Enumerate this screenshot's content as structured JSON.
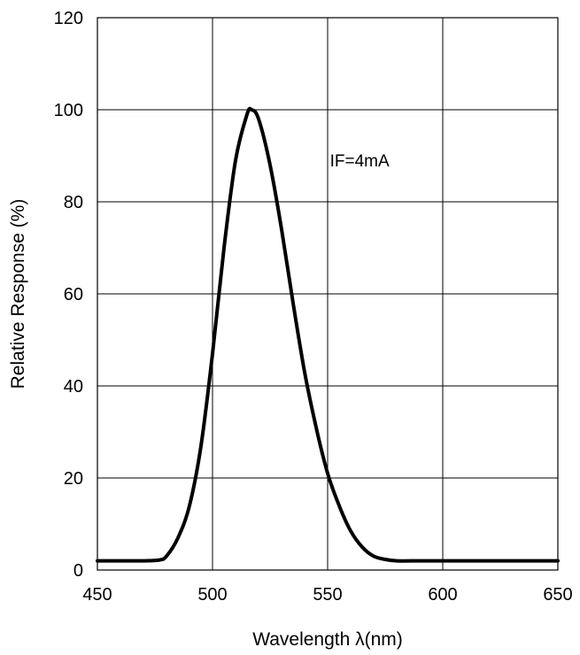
{
  "chart_data": {
    "type": "line",
    "title": "",
    "xlabel": "Wavelength λ(nm)",
    "ylabel": "Relative Response (%)",
    "xlim": [
      450,
      650
    ],
    "ylim": [
      0,
      120
    ],
    "xticks": [
      450,
      500,
      550,
      600,
      650
    ],
    "yticks": [
      0,
      20,
      40,
      60,
      80,
      100,
      120
    ],
    "grid": true,
    "annotations": [
      {
        "text": "IF=4mA",
        "x": 551,
        "y": 89
      }
    ],
    "series": [
      {
        "color": "#000000",
        "x": [
          450,
          470,
          477,
          480,
          485,
          490,
          495,
          500,
          505,
          510,
          515,
          517,
          520,
          525,
          530,
          535,
          540,
          545,
          550,
          555,
          560,
          565,
          570,
          575,
          580,
          590,
          600,
          650
        ],
        "y": [
          2,
          2,
          2.2,
          3,
          7,
          14,
          27,
          47,
          70,
          89,
          99,
          100,
          98,
          88,
          74,
          58,
          43,
          31,
          21,
          14,
          8.5,
          5,
          3,
          2.3,
          2,
          2,
          2,
          2
        ]
      }
    ]
  }
}
